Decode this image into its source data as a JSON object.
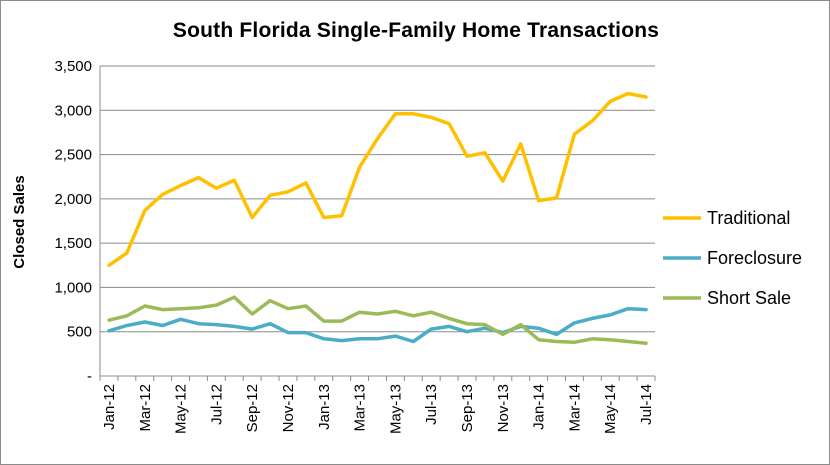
{
  "chart_data": {
    "type": "line",
    "title": "South Florida Single-Family Home Transactions",
    "xlabel": "",
    "ylabel": "Closed Sales",
    "ylim": [
      0,
      3500
    ],
    "yticks": [
      0,
      500,
      1000,
      1500,
      2000,
      2500,
      3000,
      3500
    ],
    "ytick_labels": [
      "-",
      "500",
      "1,000",
      "1,500",
      "2,000",
      "2,500",
      "3,000",
      "3,500"
    ],
    "grid": "horizontal",
    "legend_position": "right",
    "x": [
      "Jan-12",
      "Feb-12",
      "Mar-12",
      "Apr-12",
      "May-12",
      "Jun-12",
      "Jul-12",
      "Aug-12",
      "Sep-12",
      "Oct-12",
      "Nov-12",
      "Dec-12",
      "Jan-13",
      "Feb-13",
      "Mar-13",
      "Apr-13",
      "May-13",
      "Jun-13",
      "Jul-13",
      "Aug-13",
      "Sep-13",
      "Oct-13",
      "Nov-13",
      "Dec-13",
      "Jan-14",
      "Feb-14",
      "Mar-14",
      "Apr-14",
      "May-14",
      "Jun-14",
      "Jul-14"
    ],
    "xtick_labels": [
      "Jan-12",
      "Mar-12",
      "May-12",
      "Jul-12",
      "Sep-12",
      "Nov-12",
      "Jan-13",
      "Mar-13",
      "May-13",
      "Jul-13",
      "Sep-13",
      "Nov-13",
      "Jan-14",
      "Mar-14",
      "May-14",
      "Jul-14"
    ],
    "series": [
      {
        "name": "Traditional",
        "color": "#ffc000",
        "values": [
          1250,
          1390,
          1870,
          2050,
          2150,
          2240,
          2120,
          2210,
          1790,
          2040,
          2080,
          2180,
          1790,
          1810,
          2360,
          2680,
          2960,
          2960,
          2920,
          2850,
          2480,
          2520,
          2200,
          2620,
          1980,
          2010,
          2730,
          2880,
          3100,
          3190,
          3150
        ]
      },
      {
        "name": "Foreclosure",
        "color": "#4bacc6",
        "values": [
          510,
          570,
          610,
          570,
          640,
          590,
          580,
          560,
          530,
          590,
          490,
          490,
          420,
          400,
          420,
          420,
          450,
          390,
          530,
          560,
          500,
          540,
          490,
          560,
          540,
          470,
          600,
          650,
          690,
          760,
          750
        ]
      },
      {
        "name": "Short Sale",
        "color": "#9bbb59",
        "values": [
          630,
          680,
          790,
          750,
          760,
          770,
          800,
          890,
          700,
          850,
          760,
          790,
          620,
          620,
          720,
          700,
          730,
          680,
          720,
          650,
          590,
          580,
          470,
          580,
          410,
          390,
          380,
          420,
          410,
          390,
          370
        ]
      }
    ]
  }
}
